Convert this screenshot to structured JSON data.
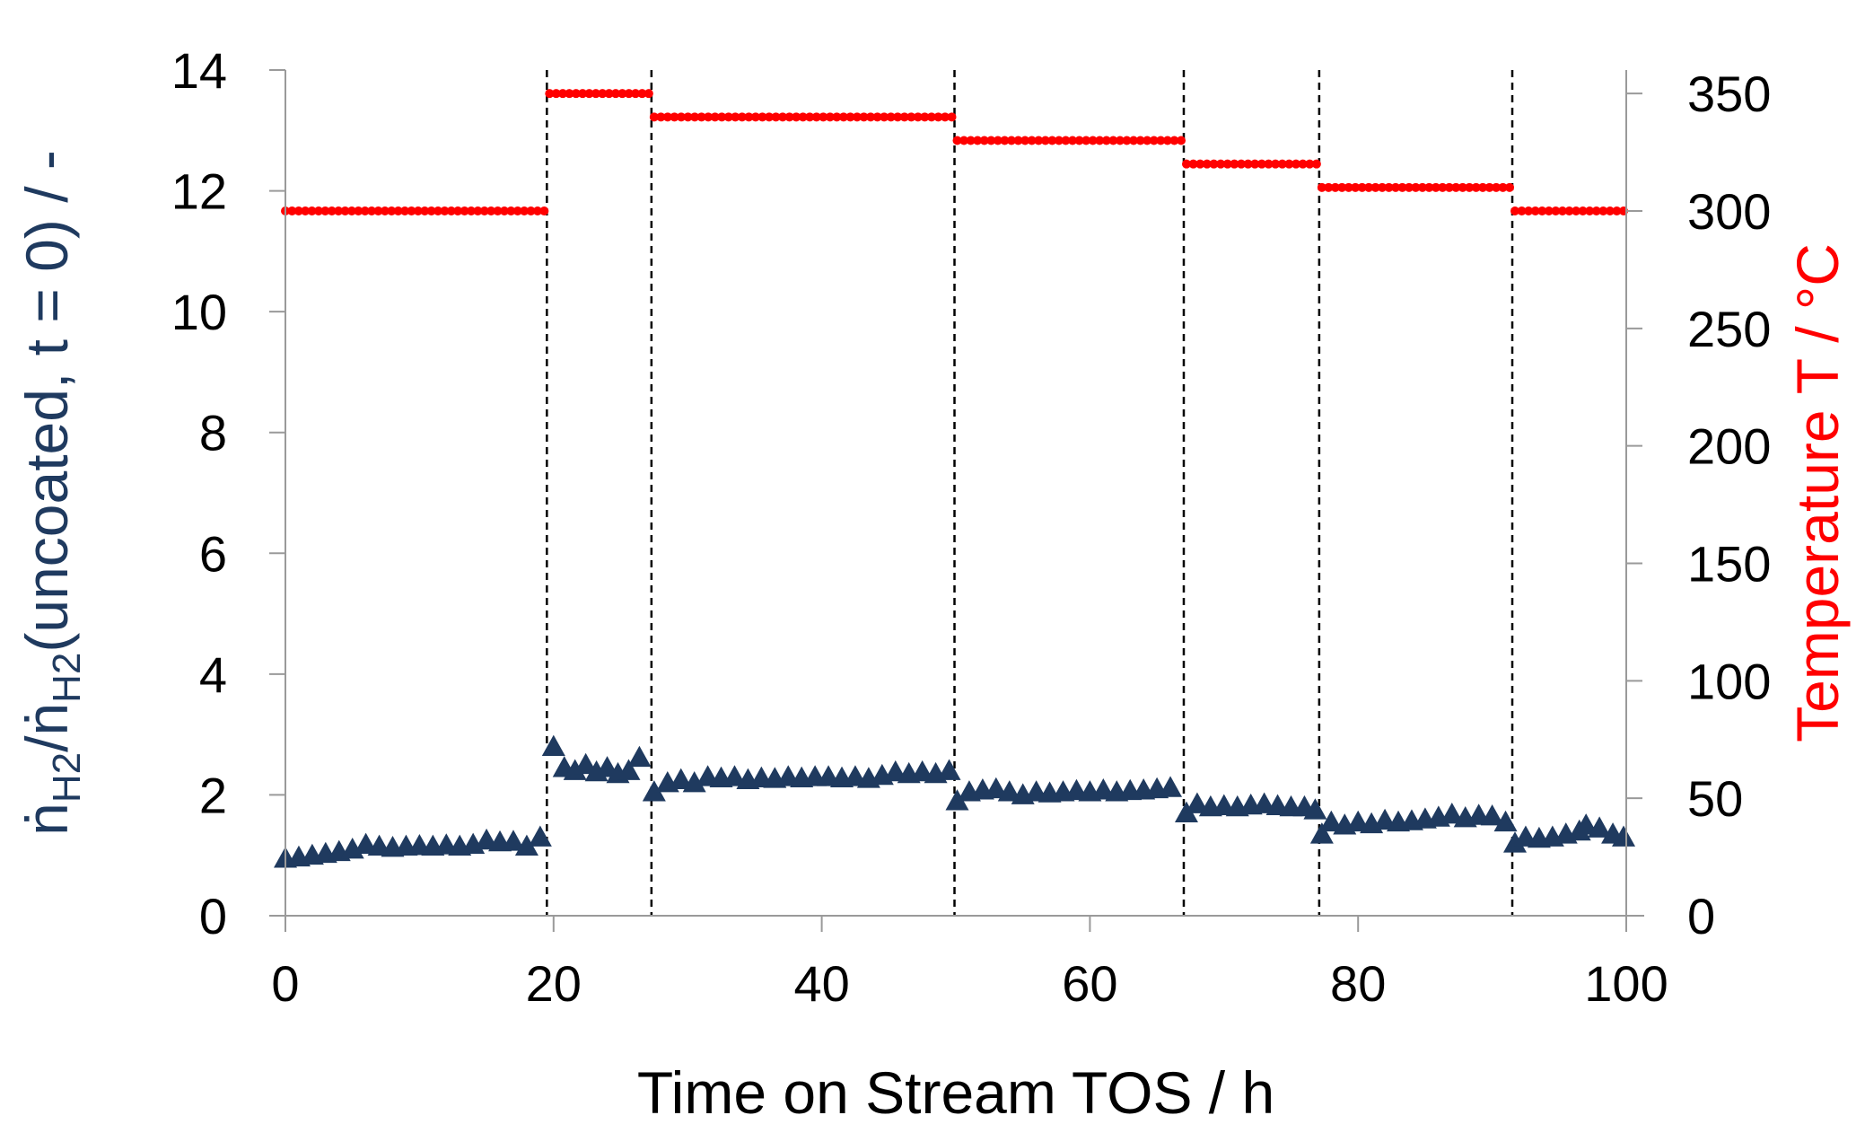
{
  "chart_data": {
    "type": "scatter",
    "x_axis": {
      "label": "Time on Stream TOS / h",
      "range": [
        0,
        100
      ],
      "ticks": [
        "0",
        "20",
        "40",
        "60",
        "80",
        "100"
      ]
    },
    "y_left_axis": {
      "label_parts": [
        "ṅ",
        "H2",
        "/ṅ",
        "H2",
        "(uncoated, t = 0) / -"
      ],
      "range": [
        0,
        14
      ],
      "ticks": [
        "0",
        "2",
        "4",
        "6",
        "8",
        "10",
        "12",
        "14"
      ],
      "color": "#1f3a5f"
    },
    "y_right_axis": {
      "label": "Temperature T / °C",
      "range": [
        0,
        360
      ],
      "ticks": [
        "0",
        "50",
        "100",
        "150",
        "200",
        "250",
        "300",
        "350"
      ],
      "color": "#ff0000"
    },
    "grid": false,
    "vertical_dividers_x": [
      19.5,
      27.3,
      49.9,
      67.0,
      77.1,
      91.5
    ],
    "temperature_segments": [
      {
        "x_start": 0.0,
        "x_end": 19.3,
        "temperature": 300
      },
      {
        "x_start": 19.7,
        "x_end": 27.1,
        "temperature": 350
      },
      {
        "x_start": 27.5,
        "x_end": 49.7,
        "temperature": 340
      },
      {
        "x_start": 50.1,
        "x_end": 66.8,
        "temperature": 330
      },
      {
        "x_start": 67.2,
        "x_end": 76.9,
        "temperature": 320
      },
      {
        "x_start": 77.3,
        "x_end": 91.3,
        "temperature": 310
      },
      {
        "x_start": 91.7,
        "x_end": 99.8,
        "temperature": 300
      }
    ],
    "ratio_points": [
      {
        "x": 0.0,
        "y": 0.95
      },
      {
        "x": 1.0,
        "y": 0.97
      },
      {
        "x": 2.0,
        "y": 1.0
      },
      {
        "x": 3.0,
        "y": 1.03
      },
      {
        "x": 4.0,
        "y": 1.06
      },
      {
        "x": 5.0,
        "y": 1.1
      },
      {
        "x": 6.0,
        "y": 1.18
      },
      {
        "x": 7.0,
        "y": 1.15
      },
      {
        "x": 8.0,
        "y": 1.13
      },
      {
        "x": 9.0,
        "y": 1.15
      },
      {
        "x": 10.0,
        "y": 1.16
      },
      {
        "x": 11.0,
        "y": 1.15
      },
      {
        "x": 12.0,
        "y": 1.17
      },
      {
        "x": 13.0,
        "y": 1.15
      },
      {
        "x": 14.0,
        "y": 1.18
      },
      {
        "x": 15.0,
        "y": 1.25
      },
      {
        "x": 16.0,
        "y": 1.22
      },
      {
        "x": 17.0,
        "y": 1.23
      },
      {
        "x": 18.0,
        "y": 1.15
      },
      {
        "x": 19.0,
        "y": 1.3
      },
      {
        "x": 20.0,
        "y": 2.8
      },
      {
        "x": 20.8,
        "y": 2.45
      },
      {
        "x": 21.6,
        "y": 2.4
      },
      {
        "x": 22.4,
        "y": 2.5
      },
      {
        "x": 23.2,
        "y": 2.38
      },
      {
        "x": 24.0,
        "y": 2.45
      },
      {
        "x": 24.8,
        "y": 2.35
      },
      {
        "x": 25.6,
        "y": 2.4
      },
      {
        "x": 26.4,
        "y": 2.62
      },
      {
        "x": 27.5,
        "y": 2.05
      },
      {
        "x": 28.5,
        "y": 2.2
      },
      {
        "x": 29.5,
        "y": 2.25
      },
      {
        "x": 30.5,
        "y": 2.2
      },
      {
        "x": 31.5,
        "y": 2.3
      },
      {
        "x": 32.5,
        "y": 2.28
      },
      {
        "x": 33.5,
        "y": 2.3
      },
      {
        "x": 34.5,
        "y": 2.25
      },
      {
        "x": 35.5,
        "y": 2.28
      },
      {
        "x": 36.5,
        "y": 2.27
      },
      {
        "x": 37.5,
        "y": 2.3
      },
      {
        "x": 38.5,
        "y": 2.28
      },
      {
        "x": 39.5,
        "y": 2.3
      },
      {
        "x": 40.5,
        "y": 2.3
      },
      {
        "x": 41.5,
        "y": 2.28
      },
      {
        "x": 42.5,
        "y": 2.3
      },
      {
        "x": 43.5,
        "y": 2.27
      },
      {
        "x": 44.5,
        "y": 2.32
      },
      {
        "x": 45.5,
        "y": 2.38
      },
      {
        "x": 46.5,
        "y": 2.35
      },
      {
        "x": 47.5,
        "y": 2.38
      },
      {
        "x": 48.5,
        "y": 2.35
      },
      {
        "x": 49.5,
        "y": 2.4
      },
      {
        "x": 50.1,
        "y": 1.9
      },
      {
        "x": 51.0,
        "y": 2.05
      },
      {
        "x": 52.0,
        "y": 2.08
      },
      {
        "x": 53.0,
        "y": 2.1
      },
      {
        "x": 54.0,
        "y": 2.05
      },
      {
        "x": 55.0,
        "y": 2.0
      },
      {
        "x": 56.0,
        "y": 2.05
      },
      {
        "x": 57.0,
        "y": 2.03
      },
      {
        "x": 58.0,
        "y": 2.05
      },
      {
        "x": 59.0,
        "y": 2.07
      },
      {
        "x": 60.0,
        "y": 2.05
      },
      {
        "x": 61.0,
        "y": 2.08
      },
      {
        "x": 62.0,
        "y": 2.05
      },
      {
        "x": 63.0,
        "y": 2.07
      },
      {
        "x": 64.0,
        "y": 2.08
      },
      {
        "x": 65.0,
        "y": 2.1
      },
      {
        "x": 66.0,
        "y": 2.12
      },
      {
        "x": 67.2,
        "y": 1.7
      },
      {
        "x": 68.0,
        "y": 1.85
      },
      {
        "x": 69.0,
        "y": 1.8
      },
      {
        "x": 70.0,
        "y": 1.82
      },
      {
        "x": 71.0,
        "y": 1.8
      },
      {
        "x": 72.0,
        "y": 1.83
      },
      {
        "x": 73.0,
        "y": 1.85
      },
      {
        "x": 74.0,
        "y": 1.82
      },
      {
        "x": 75.0,
        "y": 1.8
      },
      {
        "x": 76.0,
        "y": 1.8
      },
      {
        "x": 76.8,
        "y": 1.75
      },
      {
        "x": 77.3,
        "y": 1.35
      },
      {
        "x": 78.0,
        "y": 1.55
      },
      {
        "x": 79.0,
        "y": 1.5
      },
      {
        "x": 80.0,
        "y": 1.55
      },
      {
        "x": 81.0,
        "y": 1.52
      },
      {
        "x": 82.0,
        "y": 1.58
      },
      {
        "x": 83.0,
        "y": 1.55
      },
      {
        "x": 84.0,
        "y": 1.57
      },
      {
        "x": 85.0,
        "y": 1.6
      },
      {
        "x": 86.0,
        "y": 1.63
      },
      {
        "x": 87.0,
        "y": 1.68
      },
      {
        "x": 88.0,
        "y": 1.62
      },
      {
        "x": 89.0,
        "y": 1.66
      },
      {
        "x": 90.0,
        "y": 1.65
      },
      {
        "x": 91.0,
        "y": 1.55
      },
      {
        "x": 91.7,
        "y": 1.2
      },
      {
        "x": 92.5,
        "y": 1.3
      },
      {
        "x": 93.5,
        "y": 1.28
      },
      {
        "x": 94.5,
        "y": 1.3
      },
      {
        "x": 95.5,
        "y": 1.35
      },
      {
        "x": 96.5,
        "y": 1.4
      },
      {
        "x": 97.0,
        "y": 1.5
      },
      {
        "x": 98.0,
        "y": 1.45
      },
      {
        "x": 99.0,
        "y": 1.35
      },
      {
        "x": 99.8,
        "y": 1.3
      }
    ]
  }
}
